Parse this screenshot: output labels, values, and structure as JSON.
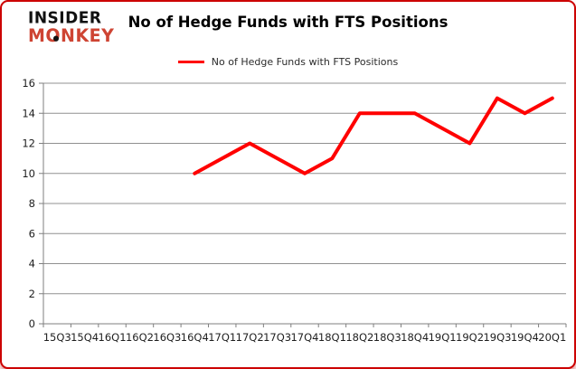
{
  "logo": {
    "line1": "INSIDER",
    "line2": "MONKEY"
  },
  "title": "No of Hedge Funds with FTS Positions",
  "legend": {
    "label": "No of Hedge Funds with FTS Positions"
  },
  "colors": {
    "line": "#ff0000",
    "frame_border": "#cc0000",
    "logo_red": "#ce4433",
    "grid": "#909090",
    "axis": "#7f7f7f"
  },
  "chart_data": {
    "type": "line",
    "title": "No of Hedge Funds with FTS Positions",
    "categories": [
      "15Q3",
      "15Q4",
      "16Q1",
      "16Q2",
      "16Q3",
      "16Q4",
      "17Q1",
      "17Q2",
      "17Q3",
      "17Q4",
      "18Q1",
      "18Q2",
      "18Q3",
      "18Q4",
      "19Q1",
      "19Q2",
      "19Q3",
      "19Q4",
      "20Q1"
    ],
    "series": [
      {
        "name": "No of Hedge Funds with FTS Positions",
        "color": "#ff0000",
        "values": [
          null,
          null,
          null,
          null,
          null,
          10,
          11,
          12,
          11,
          10,
          11,
          14,
          14,
          14,
          13,
          12,
          15,
          14,
          15
        ]
      }
    ],
    "xlabel": "",
    "ylabel": "",
    "ylim": [
      0,
      16
    ],
    "ytick_step": 2,
    "grid": true,
    "legend_position": "top-center"
  }
}
